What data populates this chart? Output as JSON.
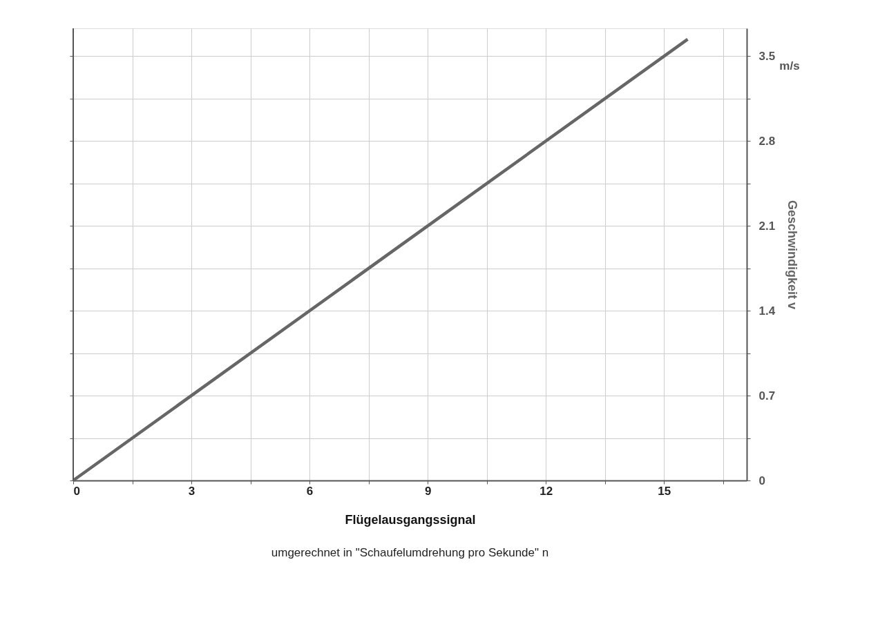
{
  "chart_data": {
    "type": "line",
    "xlabel": "Flügelausgangssignal",
    "ylabel": "Geschwindigkeit v",
    "annotations": [
      "m/s",
      "umgerechnet in \"Schaufelumdrehung pro Sekunde\" n"
    ],
    "x": [
      0,
      15.6
    ],
    "series": [
      {
        "color": "#666666",
        "values": [
          0,
          3.64
        ]
      }
    ],
    "xlim": [
      0,
      17.1
    ],
    "ylim": [
      0,
      3.73
    ],
    "xticks": [
      0,
      {
        "value": 1.5,
        "label": null
      },
      3,
      {
        "value": 4.5,
        "label": null
      },
      6,
      {
        "value": 7.5,
        "label": null
      },
      9,
      {
        "value": 10.5,
        "label": null
      },
      12,
      {
        "value": 13.5,
        "label": null
      },
      15,
      {
        "value": 16.5,
        "label": null
      }
    ],
    "yticks": [
      0,
      {
        "value": 0.35,
        "label": null
      },
      0.7,
      {
        "value": 1.05,
        "label": null
      },
      1.4,
      {
        "value": 1.75,
        "label": null
      },
      2.1,
      {
        "value": 2.45,
        "label": null
      },
      2.8,
      {
        "value": 3.15,
        "label": null
      },
      3.5
    ],
    "grid": true,
    "marker": "none",
    "line_style": "solid"
  }
}
